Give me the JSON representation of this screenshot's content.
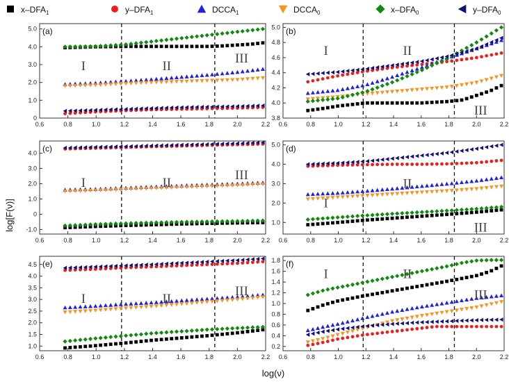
{
  "figure": {
    "ylabel": "log[F(ν)]",
    "xlabel": "log(ν)"
  },
  "legend": [
    {
      "name": "x–DFA",
      "sub": "1",
      "marker": "square",
      "color": "#000000"
    },
    {
      "name": "y–DFA",
      "sub": "1",
      "marker": "circle",
      "color": "#ee1c1c"
    },
    {
      "name": "DCCA",
      "sub": "1",
      "marker": "triangle-up",
      "color": "#1f1fe6"
    },
    {
      "name": "DCCA",
      "sub": "0",
      "marker": "triangle-down",
      "color": "#f7931e"
    },
    {
      "name": "x–DFA",
      "sub": "0",
      "marker": "diamond",
      "color": "#0f8a0f"
    },
    {
      "name": "y–DFA",
      "sub": "0",
      "marker": "triangle-left",
      "color": "#101077"
    }
  ],
  "chart_data": [
    {
      "type": "scatter",
      "label": "(a)",
      "xlim": [
        0.6,
        2.2
      ],
      "ylim": [
        0,
        5.3
      ],
      "xticks": [
        "0.6",
        "0.8",
        "1.0",
        "1.2",
        "1.4",
        "1.6",
        "1.8",
        "2.0",
        "2.2"
      ],
      "yticks": [
        "0",
        "1.0",
        "2.0",
        "3.0",
        "4.0",
        "5.0"
      ],
      "vlines": [
        1.18,
        1.84
      ],
      "regions": [
        "I",
        "II",
        "III"
      ],
      "series": [
        {
          "name": "x-DFA1",
          "x": [
            0.78,
            1.0,
            1.2,
            1.4,
            1.6,
            1.8,
            1.9,
            2.0,
            2.1,
            2.18
          ],
          "y": [
            3.95,
            4.0,
            4.02,
            4.02,
            4.02,
            4.02,
            4.05,
            4.1,
            4.15,
            4.22
          ]
        },
        {
          "name": "y-DFA1",
          "x": [
            0.78,
            1.0,
            1.2,
            1.4,
            1.6,
            1.8,
            2.0,
            2.18
          ],
          "y": [
            0.25,
            0.35,
            0.42,
            0.47,
            0.5,
            0.53,
            0.56,
            0.6
          ]
        },
        {
          "name": "DCCA1",
          "x": [
            0.78,
            1.0,
            1.2,
            1.4,
            1.6,
            1.8,
            2.0,
            2.18
          ],
          "y": [
            1.9,
            1.97,
            2.07,
            2.18,
            2.3,
            2.43,
            2.58,
            2.75
          ]
        },
        {
          "name": "DCCA0",
          "x": [
            0.78,
            1.0,
            1.2,
            1.4,
            1.6,
            1.8,
            2.0,
            2.18
          ],
          "y": [
            1.8,
            1.85,
            1.93,
            2.0,
            2.05,
            2.1,
            2.15,
            2.25
          ]
        },
        {
          "name": "x-DFA0",
          "x": [
            0.78,
            1.0,
            1.2,
            1.4,
            1.6,
            1.8,
            2.0,
            2.18
          ],
          "y": [
            4.0,
            4.03,
            4.12,
            4.3,
            4.48,
            4.66,
            4.84,
            5.0
          ]
        },
        {
          "name": "y-DFA0",
          "x": [
            0.78,
            1.0,
            1.2,
            1.4,
            1.6,
            1.8,
            2.0,
            2.18
          ],
          "y": [
            0.4,
            0.45,
            0.5,
            0.55,
            0.6,
            0.63,
            0.66,
            0.7
          ]
        }
      ]
    },
    {
      "type": "scatter",
      "label": "(b)",
      "xlim": [
        0.6,
        2.2
      ],
      "ylim": [
        3.8,
        5.05
      ],
      "xticks": [
        "0.6",
        "0.8",
        "1.0",
        "1.2",
        "1.4",
        "1.6",
        "1.8",
        "2.0",
        "2.2"
      ],
      "yticks": [
        "3.8",
        "4.0",
        "4.2",
        "4.4",
        "4.6",
        "4.8",
        "5.0"
      ],
      "vlines": [
        1.18,
        1.84
      ],
      "regions": [
        "I",
        "II",
        "III"
      ],
      "series": [
        {
          "name": "x-DFA1",
          "x": [
            0.78,
            0.9,
            1.0,
            1.1,
            1.2,
            1.4,
            1.6,
            1.8,
            1.9,
            2.0,
            2.1,
            2.18
          ],
          "y": [
            3.9,
            3.93,
            3.96,
            3.98,
            4.0,
            4.0,
            4.0,
            4.02,
            4.04,
            4.1,
            4.16,
            4.23
          ]
        },
        {
          "name": "y-DFA1",
          "x": [
            0.78,
            1.0,
            1.2,
            1.4,
            1.6,
            1.8,
            2.0,
            2.18
          ],
          "y": [
            4.28,
            4.36,
            4.42,
            4.47,
            4.51,
            4.55,
            4.6,
            4.66
          ]
        },
        {
          "name": "DCCA1",
          "x": [
            0.78,
            1.0,
            1.2,
            1.4,
            1.6,
            1.8,
            2.0,
            2.18
          ],
          "y": [
            4.13,
            4.17,
            4.24,
            4.35,
            4.47,
            4.6,
            4.72,
            4.83
          ]
        },
        {
          "name": "DCCA0",
          "x": [
            0.78,
            1.0,
            1.2,
            1.4,
            1.6,
            1.8,
            2.0,
            2.18
          ],
          "y": [
            4.05,
            4.08,
            4.12,
            4.15,
            4.18,
            4.21,
            4.27,
            4.36
          ]
        },
        {
          "name": "x-DFA0",
          "x": [
            0.78,
            1.0,
            1.2,
            1.4,
            1.6,
            1.8,
            2.0,
            2.18
          ],
          "y": [
            4.02,
            4.06,
            4.15,
            4.28,
            4.43,
            4.6,
            4.8,
            5.0
          ]
        },
        {
          "name": "y-DFA0",
          "x": [
            0.78,
            1.0,
            1.2,
            1.4,
            1.6,
            1.8,
            2.0,
            2.18
          ],
          "y": [
            4.38,
            4.41,
            4.45,
            4.5,
            4.55,
            4.62,
            4.72,
            4.86
          ]
        }
      ]
    },
    {
      "type": "scatter",
      "label": "(c)",
      "xlim": [
        0.6,
        2.2
      ],
      "ylim": [
        -1.3,
        4.8
      ],
      "xticks": [
        "0.6",
        "0.8",
        "1.0",
        "1.2",
        "1.4",
        "1.6",
        "1.8",
        "2.0",
        "2.2"
      ],
      "yticks": [
        "-1.0",
        "0",
        "1.0",
        "2.0",
        "3.0",
        "4.0"
      ],
      "vlines": [
        1.18,
        1.84
      ],
      "regions": [
        "I",
        "II",
        "III"
      ],
      "series": [
        {
          "name": "x-DFA1",
          "x": [
            0.78,
            1.0,
            1.2,
            1.4,
            1.6,
            1.8,
            2.0,
            2.18
          ],
          "y": [
            -0.88,
            -0.8,
            -0.74,
            -0.69,
            -0.64,
            -0.6,
            -0.57,
            -0.55
          ]
        },
        {
          "name": "y-DFA1",
          "x": [
            0.78,
            1.0,
            1.2,
            1.4,
            1.6,
            1.8,
            2.0,
            2.18
          ],
          "y": [
            4.28,
            4.33,
            4.38,
            4.43,
            4.47,
            4.52,
            4.56,
            4.6
          ]
        },
        {
          "name": "DCCA1",
          "x": [
            0.78,
            1.0,
            1.2,
            1.4,
            1.6,
            1.8,
            2.0,
            2.18
          ],
          "y": [
            1.6,
            1.65,
            1.72,
            1.8,
            1.87,
            1.94,
            2.0,
            2.07
          ]
        },
        {
          "name": "DCCA0",
          "x": [
            0.78,
            1.0,
            1.2,
            1.4,
            1.6,
            1.8,
            2.0,
            2.18
          ],
          "y": [
            1.5,
            1.56,
            1.63,
            1.7,
            1.77,
            1.83,
            1.9,
            1.97
          ]
        },
        {
          "name": "x-DFA0",
          "x": [
            0.78,
            1.0,
            1.2,
            1.4,
            1.6,
            1.8,
            2.0,
            2.18
          ],
          "y": [
            -0.75,
            -0.66,
            -0.6,
            -0.55,
            -0.51,
            -0.48,
            -0.45,
            -0.42
          ]
        },
        {
          "name": "y-DFA0",
          "x": [
            0.78,
            1.0,
            1.2,
            1.4,
            1.6,
            1.8,
            2.0,
            2.18
          ],
          "y": [
            4.35,
            4.4,
            4.44,
            4.49,
            4.54,
            4.59,
            4.64,
            4.7
          ]
        }
      ]
    },
    {
      "type": "scatter",
      "label": "(d)",
      "xlim": [
        0.6,
        2.2
      ],
      "ylim": [
        0.4,
        5.2
      ],
      "xticks": [
        "0.6",
        "0.8",
        "1.0",
        "1.2",
        "1.4",
        "1.6",
        "1.8",
        "2.0",
        "2.2"
      ],
      "yticks": [
        "1.0",
        "2.0",
        "3.0",
        "4.0",
        "5.0"
      ],
      "vlines": [
        1.18,
        1.84
      ],
      "regions": [
        "I",
        "II",
        "III"
      ],
      "series": [
        {
          "name": "x-DFA1",
          "x": [
            0.78,
            1.0,
            1.2,
            1.4,
            1.6,
            1.8,
            2.0,
            2.18
          ],
          "y": [
            0.88,
            1.0,
            1.12,
            1.22,
            1.32,
            1.42,
            1.53,
            1.65
          ]
        },
        {
          "name": "y-DFA1",
          "x": [
            0.78,
            1.0,
            1.2,
            1.4,
            1.6,
            1.8,
            2.0,
            2.18
          ],
          "y": [
            3.9,
            3.95,
            3.98,
            4.0,
            4.0,
            4.02,
            4.08,
            4.2
          ]
        },
        {
          "name": "DCCA1",
          "x": [
            0.78,
            1.0,
            1.2,
            1.4,
            1.6,
            1.8,
            2.0,
            2.18
          ],
          "y": [
            2.45,
            2.52,
            2.62,
            2.74,
            2.87,
            3.0,
            3.15,
            3.32
          ]
        },
        {
          "name": "DCCA0",
          "x": [
            0.78,
            1.0,
            1.2,
            1.4,
            1.6,
            1.8,
            2.0,
            2.18
          ],
          "y": [
            2.2,
            2.3,
            2.38,
            2.47,
            2.55,
            2.63,
            2.73,
            2.86
          ]
        },
        {
          "name": "x-DFA0",
          "x": [
            0.78,
            1.0,
            1.2,
            1.4,
            1.6,
            1.8,
            2.0,
            2.18
          ],
          "y": [
            1.15,
            1.26,
            1.36,
            1.45,
            1.53,
            1.61,
            1.7,
            1.8
          ]
        },
        {
          "name": "y-DFA0",
          "x": [
            0.78,
            1.0,
            1.2,
            1.4,
            1.6,
            1.8,
            2.0,
            2.18
          ],
          "y": [
            4.0,
            4.06,
            4.15,
            4.3,
            4.45,
            4.6,
            4.8,
            5.0
          ]
        }
      ]
    },
    {
      "type": "scatter",
      "label": "(e)",
      "xlim": [
        0.6,
        2.2
      ],
      "ylim": [
        0.8,
        4.85
      ],
      "xticks": [
        "0.6",
        "0.8",
        "1.0",
        "1.2",
        "1.4",
        "1.6",
        "1.8",
        "2.0",
        "2.2"
      ],
      "yticks": [
        "1.0",
        "1.5",
        "2.0",
        "2.5",
        "3.0",
        "3.5",
        "4.0",
        "4.5"
      ],
      "vlines": [
        1.18,
        1.84
      ],
      "regions": [
        "I",
        "II",
        "III"
      ],
      "series": [
        {
          "name": "x-DFA1",
          "x": [
            0.78,
            1.0,
            1.2,
            1.4,
            1.6,
            1.8,
            2.0,
            2.18
          ],
          "y": [
            0.92,
            1.02,
            1.13,
            1.25,
            1.35,
            1.45,
            1.57,
            1.7
          ]
        },
        {
          "name": "y-DFA1",
          "x": [
            0.78,
            1.0,
            1.2,
            1.4,
            1.6,
            1.8,
            2.0,
            2.18
          ],
          "y": [
            4.25,
            4.3,
            4.36,
            4.4,
            4.45,
            4.5,
            4.55,
            4.62
          ]
        },
        {
          "name": "DCCA1",
          "x": [
            0.78,
            1.0,
            1.2,
            1.4,
            1.6,
            1.8,
            2.0,
            2.18
          ],
          "y": [
            2.65,
            2.72,
            2.8,
            2.87,
            2.95,
            3.03,
            3.11,
            3.2
          ]
        },
        {
          "name": "DCCA0",
          "x": [
            0.78,
            1.0,
            1.2,
            1.4,
            1.6,
            1.8,
            2.0,
            2.18
          ],
          "y": [
            2.45,
            2.53,
            2.62,
            2.7,
            2.8,
            2.9,
            3.0,
            3.1
          ]
        },
        {
          "name": "x-DFA0",
          "x": [
            0.78,
            1.0,
            1.2,
            1.4,
            1.6,
            1.8,
            2.0,
            2.18
          ],
          "y": [
            1.2,
            1.33,
            1.44,
            1.55,
            1.63,
            1.71,
            1.77,
            1.82
          ]
        },
        {
          "name": "y-DFA0",
          "x": [
            0.78,
            1.0,
            1.2,
            1.4,
            1.6,
            1.8,
            2.0,
            2.18
          ],
          "y": [
            4.35,
            4.4,
            4.45,
            4.5,
            4.56,
            4.62,
            4.68,
            4.75
          ]
        }
      ]
    },
    {
      "type": "scatter",
      "label": "(f)",
      "xlim": [
        0.6,
        2.2
      ],
      "ylim": [
        0.12,
        1.88
      ],
      "xticks": [
        "0.6",
        "0.8",
        "1.0",
        "1.2",
        "1.4",
        "1.6",
        "1.8",
        "2.0",
        "2.2"
      ],
      "yticks": [
        "0.2",
        "0.4",
        "0.6",
        "0.8",
        "1.0",
        "1.2",
        "1.4",
        "1.6",
        "1.8"
      ],
      "vlines": [
        1.18,
        1.84
      ],
      "regions": [
        "I",
        "II",
        "III"
      ],
      "series": [
        {
          "name": "x-DFA1",
          "x": [
            0.78,
            0.9,
            1.0,
            1.1,
            1.2,
            1.4,
            1.6,
            1.8,
            1.9,
            2.0,
            2.1,
            2.18
          ],
          "y": [
            0.87,
            0.98,
            1.05,
            1.1,
            1.15,
            1.24,
            1.33,
            1.42,
            1.47,
            1.52,
            1.6,
            1.7
          ]
        },
        {
          "name": "y-DFA1",
          "x": [
            0.78,
            0.9,
            1.0,
            1.1,
            1.2,
            1.4,
            1.6,
            1.7,
            1.8,
            2.0,
            2.18
          ],
          "y": [
            0.22,
            0.28,
            0.34,
            0.38,
            0.42,
            0.48,
            0.54,
            0.57,
            0.57,
            0.57,
            0.57
          ]
        },
        {
          "name": "DCCA1",
          "x": [
            0.78,
            0.9,
            1.0,
            1.2,
            1.4,
            1.6,
            1.8,
            2.0,
            2.18
          ],
          "y": [
            0.5,
            0.57,
            0.62,
            0.74,
            0.85,
            0.94,
            1.02,
            1.1,
            1.15
          ]
        },
        {
          "name": "DCCA0",
          "x": [
            0.78,
            0.9,
            1.0,
            1.2,
            1.4,
            1.6,
            1.8,
            2.0,
            2.18
          ],
          "y": [
            0.28,
            0.35,
            0.42,
            0.55,
            0.68,
            0.77,
            0.85,
            0.93,
            1.03
          ]
        },
        {
          "name": "x-DFA0",
          "x": [
            0.78,
            0.9,
            1.0,
            1.2,
            1.4,
            1.6,
            1.8,
            1.9,
            2.0,
            2.1,
            2.18
          ],
          "y": [
            1.16,
            1.25,
            1.3,
            1.4,
            1.5,
            1.6,
            1.7,
            1.76,
            1.8,
            1.81,
            1.81
          ]
        },
        {
          "name": "y-DFA0",
          "x": [
            0.78,
            0.9,
            1.0,
            1.2,
            1.4,
            1.6,
            1.8,
            2.0,
            2.18
          ],
          "y": [
            0.42,
            0.48,
            0.52,
            0.58,
            0.62,
            0.65,
            0.67,
            0.69,
            0.7
          ]
        }
      ]
    }
  ]
}
